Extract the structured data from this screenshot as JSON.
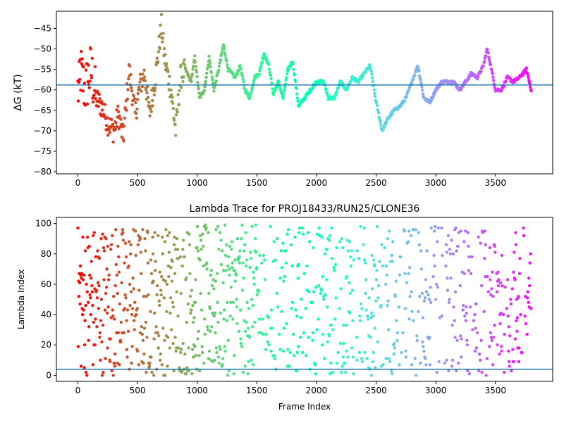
{
  "chart_data": [
    {
      "type": "scatter",
      "title": "",
      "xlabel": "",
      "ylabel": "ΔG (kT)",
      "xlim": [
        -180,
        3980
      ],
      "ylim": [
        -80.5,
        -40.8
      ],
      "xticks": [
        0,
        500,
        1000,
        1500,
        2000,
        2500,
        3000,
        3500
      ],
      "yticks": [
        -80,
        -75,
        -70,
        -65,
        -60,
        -55,
        -50,
        -45
      ],
      "grid": false,
      "colormap": "rainbow (red at frame 0 → violet at last frame)",
      "reference_line": {
        "y": -58.8,
        "color": "#1f77b4"
      },
      "anchors": [
        {
          "x": 20,
          "y": -55
        },
        {
          "x": 60,
          "y": -60
        },
        {
          "x": 110,
          "y": -55
        },
        {
          "x": 150,
          "y": -62
        },
        {
          "x": 200,
          "y": -64
        },
        {
          "x": 250,
          "y": -68
        },
        {
          "x": 300,
          "y": -70
        },
        {
          "x": 340,
          "y": -66
        },
        {
          "x": 380,
          "y": -72
        },
        {
          "x": 430,
          "y": -55
        },
        {
          "x": 480,
          "y": -66
        },
        {
          "x": 520,
          "y": -59
        },
        {
          "x": 560,
          "y": -56
        },
        {
          "x": 600,
          "y": -66
        },
        {
          "x": 650,
          "y": -57
        },
        {
          "x": 700,
          "y": -44.5
        },
        {
          "x": 730,
          "y": -53
        },
        {
          "x": 780,
          "y": -60
        },
        {
          "x": 820,
          "y": -70
        },
        {
          "x": 860,
          "y": -57
        },
        {
          "x": 900,
          "y": -55
        },
        {
          "x": 950,
          "y": -58
        },
        {
          "x": 980,
          "y": -52
        },
        {
          "x": 1020,
          "y": -62
        },
        {
          "x": 1060,
          "y": -60
        },
        {
          "x": 1100,
          "y": -52
        },
        {
          "x": 1140,
          "y": -60
        },
        {
          "x": 1180,
          "y": -55
        },
        {
          "x": 1220,
          "y": -49
        },
        {
          "x": 1260,
          "y": -55
        },
        {
          "x": 1320,
          "y": -57
        },
        {
          "x": 1360,
          "y": -54
        },
        {
          "x": 1400,
          "y": -60
        },
        {
          "x": 1440,
          "y": -62
        },
        {
          "x": 1480,
          "y": -57
        },
        {
          "x": 1520,
          "y": -56
        },
        {
          "x": 1560,
          "y": -51
        },
        {
          "x": 1600,
          "y": -54
        },
        {
          "x": 1640,
          "y": -61
        },
        {
          "x": 1680,
          "y": -58
        },
        {
          "x": 1720,
          "y": -62
        },
        {
          "x": 1760,
          "y": -55
        },
        {
          "x": 1800,
          "y": -53
        },
        {
          "x": 1850,
          "y": -64
        },
        {
          "x": 1900,
          "y": -62
        },
        {
          "x": 1950,
          "y": -60
        },
        {
          "x": 2000,
          "y": -58
        },
        {
          "x": 2060,
          "y": -58
        },
        {
          "x": 2100,
          "y": -62
        },
        {
          "x": 2150,
          "y": -62
        },
        {
          "x": 2200,
          "y": -58
        },
        {
          "x": 2250,
          "y": -60
        },
        {
          "x": 2300,
          "y": -57
        },
        {
          "x": 2350,
          "y": -58
        },
        {
          "x": 2400,
          "y": -56
        },
        {
          "x": 2450,
          "y": -54
        },
        {
          "x": 2500,
          "y": -63
        },
        {
          "x": 2550,
          "y": -70
        },
        {
          "x": 2600,
          "y": -67
        },
        {
          "x": 2650,
          "y": -65
        },
        {
          "x": 2700,
          "y": -64
        },
        {
          "x": 2750,
          "y": -62
        },
        {
          "x": 2800,
          "y": -58
        },
        {
          "x": 2850,
          "y": -54
        },
        {
          "x": 2900,
          "y": -62
        },
        {
          "x": 2950,
          "y": -63
        },
        {
          "x": 3000,
          "y": -60
        },
        {
          "x": 3050,
          "y": -58
        },
        {
          "x": 3100,
          "y": -58
        },
        {
          "x": 3150,
          "y": -58
        },
        {
          "x": 3200,
          "y": -60
        },
        {
          "x": 3250,
          "y": -58
        },
        {
          "x": 3300,
          "y": -56
        },
        {
          "x": 3350,
          "y": -57
        },
        {
          "x": 3400,
          "y": -54
        },
        {
          "x": 3430,
          "y": -50
        },
        {
          "x": 3460,
          "y": -54
        },
        {
          "x": 3500,
          "y": -60
        },
        {
          "x": 3550,
          "y": -60
        },
        {
          "x": 3600,
          "y": -57
        },
        {
          "x": 3650,
          "y": -58
        },
        {
          "x": 3700,
          "y": -57
        },
        {
          "x": 3760,
          "y": -55
        },
        {
          "x": 3800,
          "y": -60
        }
      ]
    },
    {
      "type": "scatter",
      "title": "Lambda Trace for PROJ18433/RUN25/CLONE36",
      "xlabel": "Frame Index",
      "ylabel": "Lambda Index",
      "xlim": [
        -180,
        3980
      ],
      "ylim": [
        -4,
        104
      ],
      "xticks": [
        0,
        500,
        1000,
        1500,
        2000,
        2500,
        3000,
        3500
      ],
      "yticks": [
        0,
        20,
        40,
        60,
        80,
        100
      ],
      "grid": false,
      "colormap": "rainbow (red at frame 0 → violet at last frame)",
      "reference_line": {
        "y": 4,
        "color": "#1f77b4"
      },
      "x_range": [
        0,
        3800
      ],
      "lambda_range": [
        0,
        99
      ]
    }
  ]
}
